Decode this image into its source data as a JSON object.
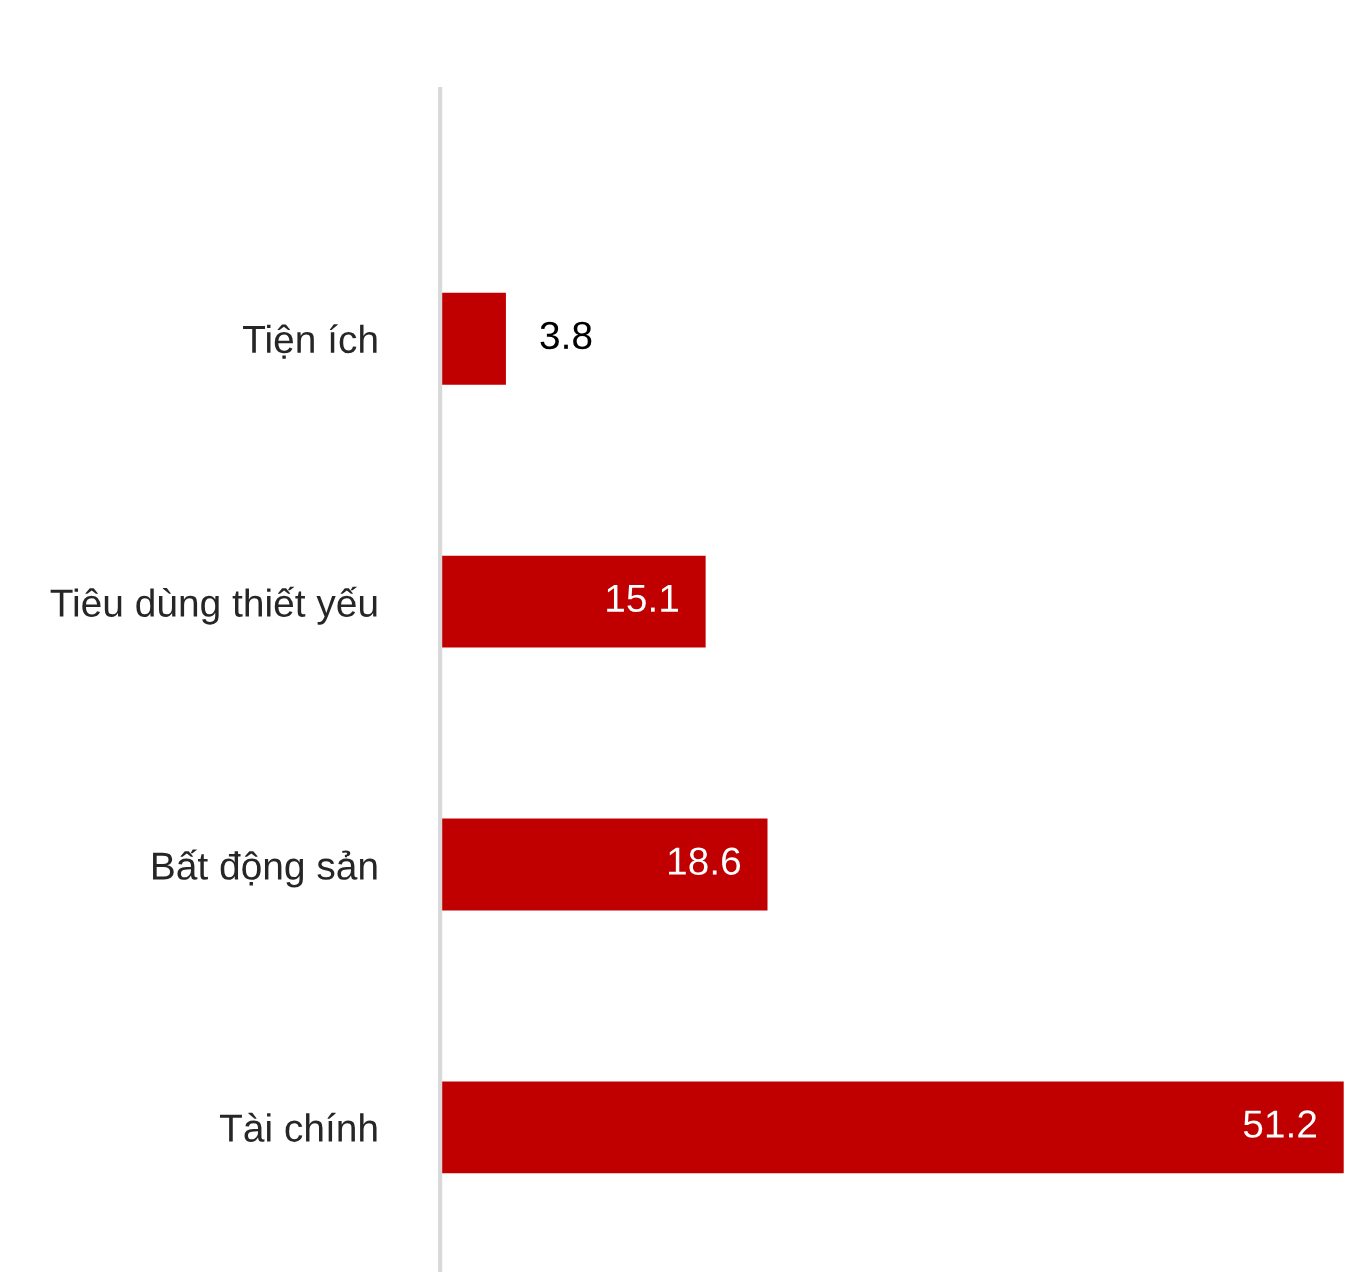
{
  "chart_data": {
    "type": "bar",
    "orientation": "horizontal",
    "categories": [
      "Tiện ích",
      "Tiêu dùng thiết yếu",
      "Bất động sản",
      "Tài chính"
    ],
    "series": [
      {
        "color": "#c00000",
        "values": [
          3.8,
          15.1,
          18.6,
          51.2
        ]
      }
    ],
    "data_labels": true,
    "grid": false
  }
}
